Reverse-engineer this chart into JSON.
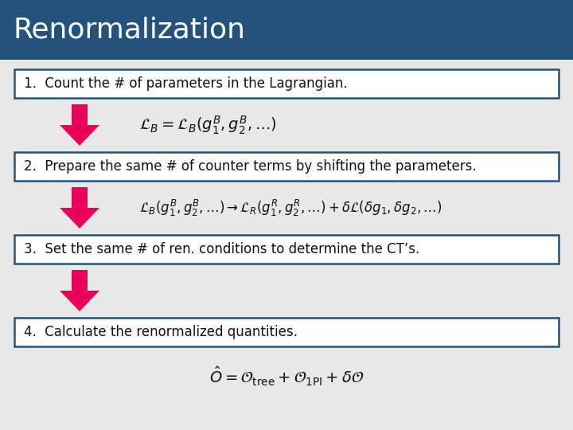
{
  "title": "Renormalization",
  "title_bg": "#24527a",
  "title_color": "#ffffff",
  "bg_color": "#e8e8e8",
  "box_bg_color": "#ffffff",
  "box_edge_color": "#24527a",
  "arrow_color": "#e8005a",
  "text_color": "#111111",
  "steps": [
    "1.  Count the # of parameters in the Lagrangian.",
    "2.  Prepare the same # of counter terms by shifting the parameters.",
    "3.  Set the same # of ren. conditions to determine the CT’s.",
    "4.  Calculate the renormalized quantities."
  ],
  "eq1": "$\\mathcal{L}_B = \\mathcal{L}_B(g_1^B, g_2^B, \\ldots)$",
  "eq2": "$\\mathcal{L}_B(g_1^B,g_2^B,\\ldots) \\rightarrow \\mathcal{L}_R(g_1^R,g_2^R,\\ldots) + \\delta\\mathcal{L}(\\delta g_1, \\delta g_2,\\ldots)$",
  "eq3": "$\\hat{O} = \\mathcal{O}_{\\mathrm{tree}} + \\mathcal{O}_{\\mathrm{1PI}} + \\delta\\mathcal{O}$",
  "title_fontsize": 26,
  "step_fontsize": 12,
  "eq_fontsize": 14,
  "eq2_fontsize": 12
}
